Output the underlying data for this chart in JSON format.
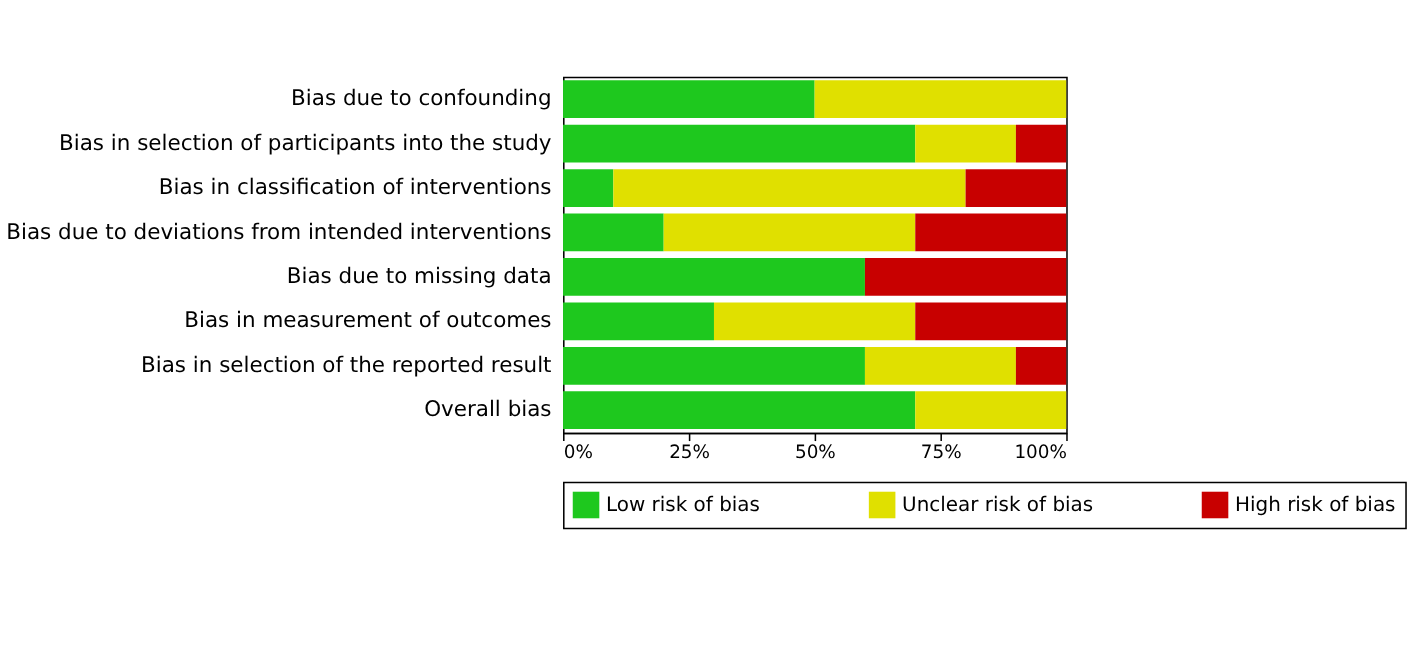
{
  "chart_data": {
    "type": "bar",
    "orientation": "horizontal",
    "stacked": true,
    "categories": [
      "Bias due to confounding",
      "Bias in selection of participants into the study",
      "Bias in classification of interventions",
      "Bias due to deviations from intended interventions",
      "Bias due to missing data",
      "Bias in measurement of outcomes",
      "Bias in selection of the reported result",
      "Overall bias"
    ],
    "series": [
      {
        "name": "Low risk of bias",
        "color": "#1ec81e",
        "values": [
          50,
          70,
          10,
          20,
          60,
          30,
          60,
          70
        ]
      },
      {
        "name": "Unclear risk of bias",
        "color": "#e0e000",
        "values": [
          50,
          20,
          70,
          50,
          0,
          40,
          30,
          30
        ]
      },
      {
        "name": "High risk of bias",
        "color": "#c80000",
        "values": [
          0,
          10,
          20,
          30,
          40,
          30,
          10,
          0
        ]
      }
    ],
    "xlim": [
      0,
      100
    ],
    "xticks": [
      {
        "value": 0,
        "label": "0%"
      },
      {
        "value": 25,
        "label": "25%"
      },
      {
        "value": 50,
        "label": "50%"
      },
      {
        "value": 75,
        "label": "75%"
      },
      {
        "value": 100,
        "label": "100%"
      }
    ],
    "grid": false,
    "legend": "bottom"
  }
}
